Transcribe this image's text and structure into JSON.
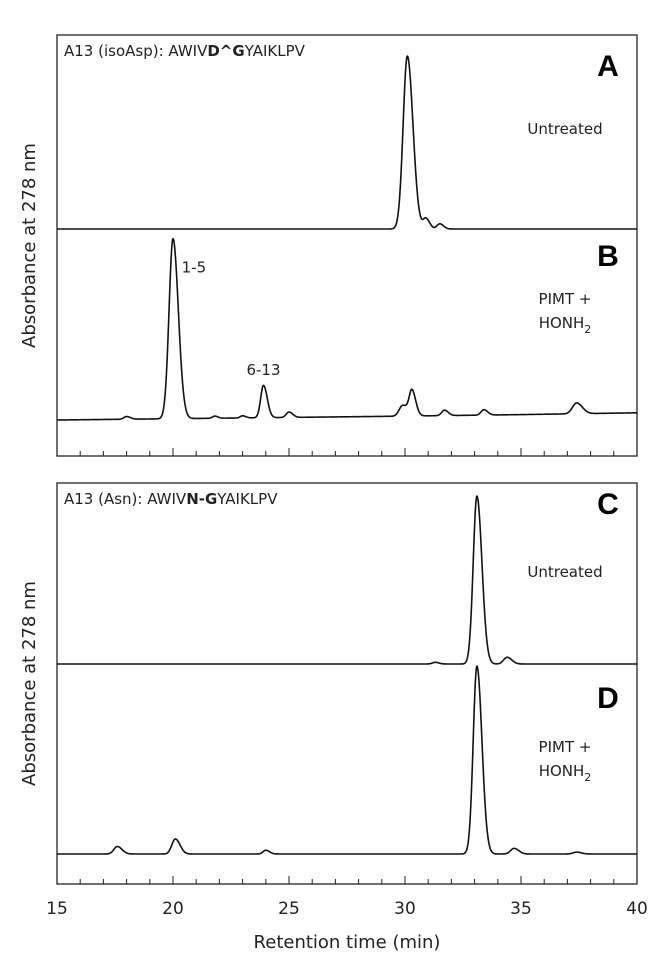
{
  "chart_data": [
    {
      "type": "line",
      "peptide_label": "A13 (isoAsp): AWIV",
      "peptide_bold": "D^G",
      "peptide_suffix": "YAIKLPV",
      "ylabel": "Absorbance at 278 nm",
      "panels": [
        {
          "letter": "A",
          "condition_lines": [
            "Untreated"
          ],
          "baseline": [
            [
              15,
              0.0
            ],
            [
              40,
              0.0
            ]
          ],
          "peaks": [
            {
              "x": 30.1,
              "h": 1.0,
              "w": 0.18
            },
            {
              "x": 30.9,
              "h": 0.06,
              "w": 0.12
            },
            {
              "x": 31.5,
              "h": 0.03,
              "w": 0.12
            }
          ],
          "peak_labels": []
        },
        {
          "letter": "B",
          "condition_lines": [
            "PIMT +",
            "HONH"
          ],
          "condition_sub": "2",
          "baseline": [
            [
              15,
              0.0
            ],
            [
              29,
              0.02
            ],
            [
              35,
              0.03
            ],
            [
              40,
              0.04
            ]
          ],
          "peaks": [
            {
              "x": 20.0,
              "h": 1.0,
              "w": 0.17
            },
            {
              "x": 23.9,
              "h": 0.18,
              "w": 0.12
            },
            {
              "x": 25.0,
              "h": 0.03,
              "w": 0.12
            },
            {
              "x": 29.9,
              "h": 0.06,
              "w": 0.15
            },
            {
              "x": 30.3,
              "h": 0.14,
              "w": 0.12
            },
            {
              "x": 31.7,
              "h": 0.03,
              "w": 0.12
            },
            {
              "x": 33.4,
              "h": 0.03,
              "w": 0.12
            },
            {
              "x": 37.4,
              "h": 0.06,
              "w": 0.18
            },
            {
              "x": 18.0,
              "h": 0.015,
              "w": 0.12
            },
            {
              "x": 21.8,
              "h": 0.012,
              "w": 0.1
            },
            {
              "x": 23.0,
              "h": 0.012,
              "w": 0.1
            }
          ],
          "peak_labels": [
            {
              "text": "1-5",
              "x": 20.9,
              "y": 0.82
            },
            {
              "text": "6-13",
              "x": 23.9,
              "y": 0.25
            }
          ]
        }
      ]
    },
    {
      "type": "line",
      "peptide_label": "A13 (Asn): AWIV",
      "peptide_bold": "N-G",
      "peptide_suffix": "YAIKLPV",
      "ylabel": "Absorbance at 278 nm",
      "panels": [
        {
          "letter": "C",
          "condition_lines": [
            "Untreated"
          ],
          "baseline": [
            [
              15,
              0.0
            ],
            [
              40,
              0.0
            ]
          ],
          "peaks": [
            {
              "x": 33.1,
              "h": 1.0,
              "w": 0.16
            },
            {
              "x": 34.4,
              "h": 0.04,
              "w": 0.15
            },
            {
              "x": 31.3,
              "h": 0.01,
              "w": 0.12
            }
          ],
          "peak_labels": []
        },
        {
          "letter": "D",
          "condition_lines": [
            "PIMT +",
            "HONH"
          ],
          "condition_sub": "2",
          "baseline": [
            [
              15,
              0.0
            ],
            [
              40,
              0.0
            ]
          ],
          "peaks": [
            {
              "x": 17.6,
              "h": 0.04,
              "w": 0.15
            },
            {
              "x": 20.1,
              "h": 0.08,
              "w": 0.15
            },
            {
              "x": 24.0,
              "h": 0.02,
              "w": 0.12
            },
            {
              "x": 33.1,
              "h": 1.0,
              "w": 0.16
            },
            {
              "x": 34.7,
              "h": 0.03,
              "w": 0.15
            },
            {
              "x": 37.4,
              "h": 0.01,
              "w": 0.15
            }
          ],
          "peak_labels": []
        }
      ]
    }
  ],
  "x_axis": {
    "xlim": [
      15,
      40
    ],
    "major_ticks": [
      15,
      20,
      25,
      30,
      35,
      40
    ],
    "minor_step": 1,
    "xlabel": "Retention time (min)"
  },
  "colors": {
    "trace": "#111111",
    "axis": "#222222"
  }
}
